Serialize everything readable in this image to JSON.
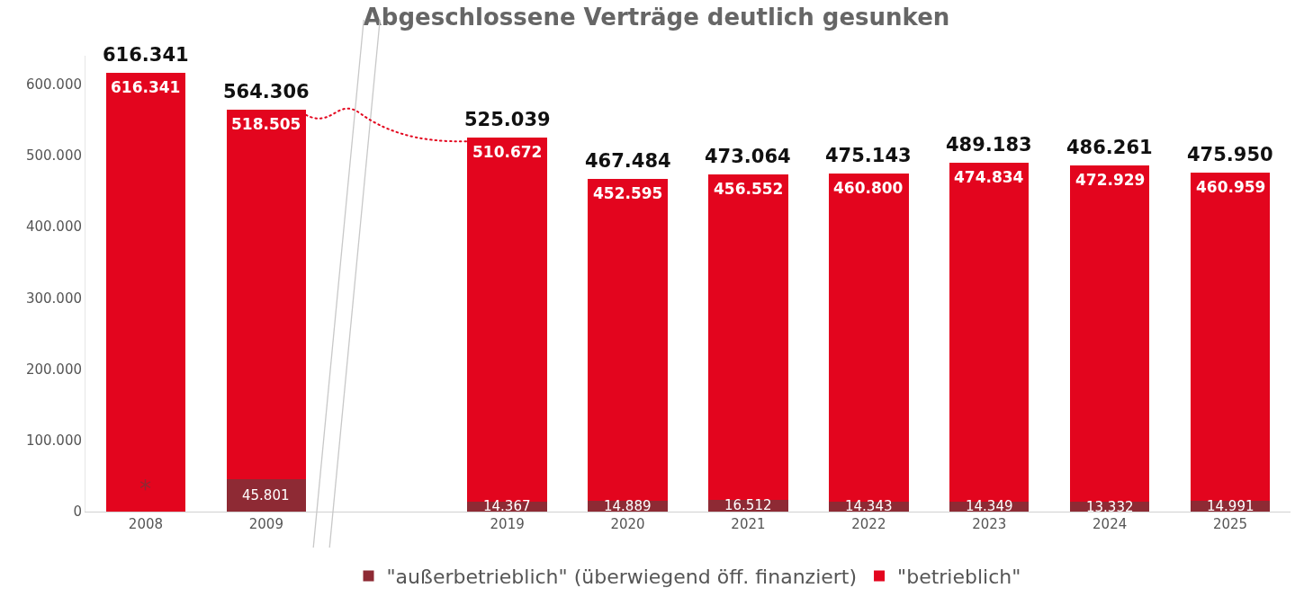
{
  "chart_data": {
    "type": "bar",
    "title": "Abgeschlossene Verträge deutlich gesunken",
    "stacked": true,
    "categories": [
      "2008",
      "2009",
      null,
      "2019",
      "2020",
      "2021",
      "2022",
      "2023",
      "2024",
      "2025"
    ],
    "series": [
      {
        "name": "\"außerbetrieblich\" (überwiegend öff. finanziert)",
        "color": "#8e2a34",
        "values": [
          null,
          45801,
          null,
          14367,
          14889,
          16512,
          14343,
          14349,
          13332,
          14991
        ],
        "value_labels": [
          null,
          "45.801",
          null,
          "14.367",
          "14.889",
          "16.512",
          "14.343",
          "14.349",
          "13.332",
          "14.991"
        ]
      },
      {
        "name": "\"betrieblich\"",
        "color": "#e3051e",
        "values": [
          616341,
          518505,
          null,
          510672,
          452595,
          456552,
          460800,
          474834,
          472929,
          460959
        ],
        "value_labels": [
          "616.341",
          "518.505",
          null,
          "510.672",
          "452.595",
          "456.552",
          "460.800",
          "474.834",
          "472.929",
          "460.959"
        ]
      }
    ],
    "totals": [
      "616.341",
      "564.306",
      null,
      "525.039",
      "467.484",
      "473.064",
      "475.143",
      "489.183",
      "486.261",
      "475.950"
    ],
    "ylim": [
      0,
      640000
    ],
    "yticks": [
      {
        "value": 0,
        "label": "0"
      },
      {
        "value": 100000,
        "label": "100.000"
      },
      {
        "value": 200000,
        "label": "200.000"
      },
      {
        "value": 300000,
        "label": "300.000"
      },
      {
        "value": 400000,
        "label": "400.000"
      },
      {
        "value": 500000,
        "label": "500.000"
      },
      {
        "value": 600000,
        "label": "600.000"
      }
    ],
    "annotations": [
      "*"
    ],
    "grid": false,
    "legend": "bottom"
  }
}
